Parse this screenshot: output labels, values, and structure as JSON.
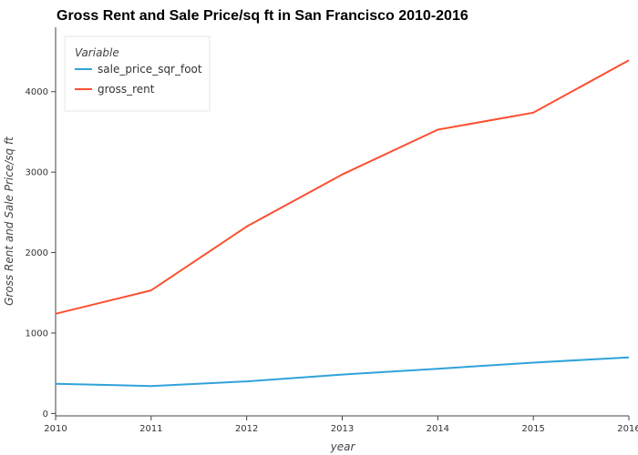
{
  "chart_data": {
    "type": "line",
    "title": "Gross Rent and Sale Price/sq ft in San Francisco 2010-2016",
    "xlabel": "year",
    "ylabel": "Gross Rent and Sale Price/sq ft",
    "x": [
      2010,
      2011,
      2012,
      2013,
      2014,
      2015,
      2016
    ],
    "xlim": [
      2010,
      2016
    ],
    "ylim": [
      -30,
      4800
    ],
    "x_ticks": [
      "2010",
      "2011",
      "2012",
      "2013",
      "2014",
      "2015",
      "2016"
    ],
    "y_ticks": [
      0,
      1000,
      2000,
      3000,
      4000
    ],
    "y_tick_labels": [
      "0",
      "1000",
      "2000",
      "3000",
      "4000"
    ],
    "grid": false,
    "legend": {
      "title": "Variable",
      "position": "top-left"
    },
    "series": [
      {
        "name": "sale_price_sqr_foot",
        "color": "#30a2da",
        "values": [
          369,
          341,
          399,
          483,
          556,
          632,
          697
        ]
      },
      {
        "name": "gross_rent",
        "color": "#fc4f30",
        "values": [
          1239,
          1530,
          2324,
          2971,
          3528,
          3739,
          4390
        ]
      }
    ]
  }
}
